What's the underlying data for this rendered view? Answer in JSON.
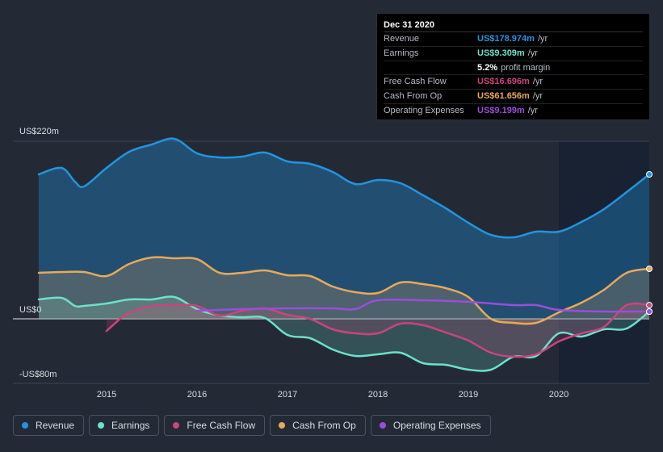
{
  "tooltip": {
    "date": "Dec 31 2020",
    "rows": [
      {
        "label": "Revenue",
        "value": "US$178.974m",
        "unit": "/yr",
        "color": "#2394df"
      },
      {
        "label": "Earnings",
        "value": "US$9.309m",
        "unit": "/yr",
        "color": "#6de0cb"
      },
      {
        "label": "",
        "value": "5.2%",
        "unit": "profit margin",
        "color": "#ffffff"
      },
      {
        "label": "Free Cash Flow",
        "value": "US$16.696m",
        "unit": "/yr",
        "color": "#c9457d"
      },
      {
        "label": "Cash From Op",
        "value": "US$61.656m",
        "unit": "/yr",
        "color": "#e8a95b"
      },
      {
        "label": "Operating Expenses",
        "value": "US$9.199m",
        "unit": "/yr",
        "color": "#9b4ddb"
      }
    ]
  },
  "legend": [
    {
      "label": "Revenue",
      "color": "#2394df"
    },
    {
      "label": "Earnings",
      "color": "#6de0cb"
    },
    {
      "label": "Free Cash Flow",
      "color": "#c9457d"
    },
    {
      "label": "Cash From Op",
      "color": "#e8a95b"
    },
    {
      "label": "Operating Expenses",
      "color": "#9b4ddb"
    }
  ],
  "chart_data": {
    "type": "area",
    "title": "",
    "xlabel": "",
    "ylabel": "",
    "x_ticks": [
      "2015",
      "2016",
      "2017",
      "2018",
      "2019",
      "2020"
    ],
    "y_labels": [
      {
        "value": 220,
        "label": "US$220m"
      },
      {
        "value": 0,
        "label": "US$0"
      },
      {
        "value": -80,
        "label": "-US$80m"
      }
    ],
    "xlim": [
      2014.25,
      2021.0
    ],
    "ylim": [
      -80,
      220
    ],
    "future_shade_start": 2020.0,
    "series": [
      {
        "name": "Revenue",
        "color": "#2394df",
        "fill": true,
        "x": [
          2014.25,
          2014.5,
          2014.65,
          2014.75,
          2015.0,
          2015.25,
          2015.5,
          2015.75,
          2016.0,
          2016.25,
          2016.5,
          2016.75,
          2017.0,
          2017.25,
          2017.5,
          2017.75,
          2018.0,
          2018.25,
          2018.5,
          2018.75,
          2019.0,
          2019.25,
          2019.5,
          2019.75,
          2020.0,
          2020.25,
          2020.5,
          2020.75,
          2021.0
        ],
        "values": [
          179,
          187,
          170,
          164,
          187,
          207,
          216,
          223,
          205,
          200,
          201,
          206,
          195,
          192,
          182,
          167,
          172,
          168,
          153,
          137,
          119,
          104,
          101,
          108,
          108,
          120,
          136,
          157,
          179
        ]
      },
      {
        "name": "Earnings",
        "color": "#6de0cb",
        "fill": true,
        "x": [
          2014.25,
          2014.5,
          2014.65,
          2014.75,
          2015.0,
          2015.25,
          2015.5,
          2015.75,
          2016.0,
          2016.25,
          2016.5,
          2016.75,
          2017.0,
          2017.25,
          2017.5,
          2017.75,
          2018.0,
          2018.25,
          2018.5,
          2018.75,
          2019.0,
          2019.25,
          2019.5,
          2019.75,
          2020.0,
          2020.25,
          2020.5,
          2020.75,
          2021.0
        ],
        "values": [
          24,
          26,
          16,
          16,
          19,
          24,
          24,
          27,
          12,
          4,
          2,
          1,
          -20,
          -24,
          -38,
          -46,
          -44,
          -42,
          -55,
          -57,
          -63,
          -63,
          -47,
          -46,
          -18,
          -22,
          -13,
          -12,
          9
        ]
      },
      {
        "name": "Free Cash Flow",
        "color": "#c9457d",
        "fill": true,
        "x": [
          2015.0,
          2015.15,
          2015.25,
          2015.5,
          2015.75,
          2016.0,
          2016.25,
          2016.5,
          2016.75,
          2017.0,
          2017.25,
          2017.5,
          2017.75,
          2018.0,
          2018.25,
          2018.5,
          2018.75,
          2019.0,
          2019.25,
          2019.5,
          2019.75,
          2020.0,
          2020.25,
          2020.5,
          2020.75,
          2021.0
        ],
        "values": [
          -15,
          0,
          8,
          16,
          17,
          16,
          4,
          10,
          13,
          5,
          0,
          -13,
          -18,
          -18,
          -6,
          -8,
          -17,
          -27,
          -42,
          -47,
          -44,
          -28,
          -18,
          -10,
          17,
          17
        ]
      },
      {
        "name": "Cash From Op",
        "color": "#e8a95b",
        "fill": true,
        "x": [
          2014.25,
          2014.5,
          2014.75,
          2015.0,
          2015.25,
          2015.5,
          2015.75,
          2016.0,
          2016.25,
          2016.5,
          2016.75,
          2017.0,
          2017.25,
          2017.5,
          2017.75,
          2018.0,
          2018.25,
          2018.5,
          2018.75,
          2019.0,
          2019.25,
          2019.5,
          2019.75,
          2020.0,
          2020.25,
          2020.5,
          2020.75,
          2021.0
        ],
        "values": [
          57,
          58,
          58,
          53,
          68,
          76,
          75,
          74,
          57,
          57,
          60,
          54,
          53,
          40,
          33,
          32,
          45,
          43,
          38,
          27,
          0,
          -5,
          -5,
          8,
          20,
          36,
          57,
          62
        ]
      },
      {
        "name": "Operating Expenses",
        "color": "#9b4ddb",
        "fill": false,
        "x": [
          2016.0,
          2016.5,
          2017.0,
          2017.5,
          2017.75,
          2018.0,
          2018.5,
          2019.0,
          2019.5,
          2019.75,
          2020.0,
          2020.5,
          2021.0
        ],
        "values": [
          10,
          12,
          13,
          13,
          12,
          23,
          23,
          21,
          17,
          17,
          11,
          9,
          9
        ]
      }
    ]
  }
}
